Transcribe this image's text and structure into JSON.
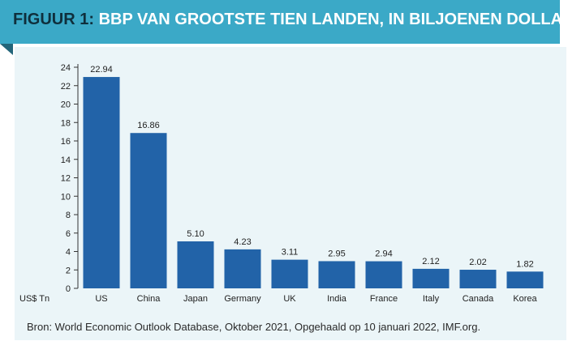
{
  "header": {
    "figure_label": "FIGUUR 1:",
    "title": "BBP VAN GROOTSTE TIEN LANDEN, IN BILJOENEN DOLLARS"
  },
  "source": "Bron: World Economic Outlook Database, Oktober 2021, Opgehaald op 10 januari 2022, IMF.org.",
  "colors": {
    "banner": "#3ba9c7",
    "banner_fold": "#23657a",
    "panel": "#ebf5f8",
    "bar": "#2263a8",
    "title_number": "#0f2f3c"
  },
  "chart_data": {
    "type": "bar",
    "title": "BBP VAN GROOTSTE TIEN LANDEN, IN BILJOENEN DOLLARS",
    "ylabel": "US$ Tn",
    "xlabel": "",
    "categories": [
      "US",
      "China",
      "Japan",
      "Germany",
      "UK",
      "India",
      "France",
      "Italy",
      "Canada",
      "Korea"
    ],
    "values": [
      22.94,
      16.86,
      5.1,
      4.23,
      3.11,
      2.95,
      2.94,
      2.12,
      2.02,
      1.82
    ],
    "value_labels": [
      "22.94",
      "16.86",
      "5.10",
      "4.23",
      "3.11",
      "2.95",
      "2.94",
      "2.12",
      "2.02",
      "1.82"
    ],
    "ylim": [
      0,
      24
    ],
    "yticks": [
      0,
      2,
      4,
      6,
      8,
      10,
      12,
      14,
      16,
      18,
      20,
      22,
      24
    ],
    "grid": false,
    "legend": "none"
  }
}
